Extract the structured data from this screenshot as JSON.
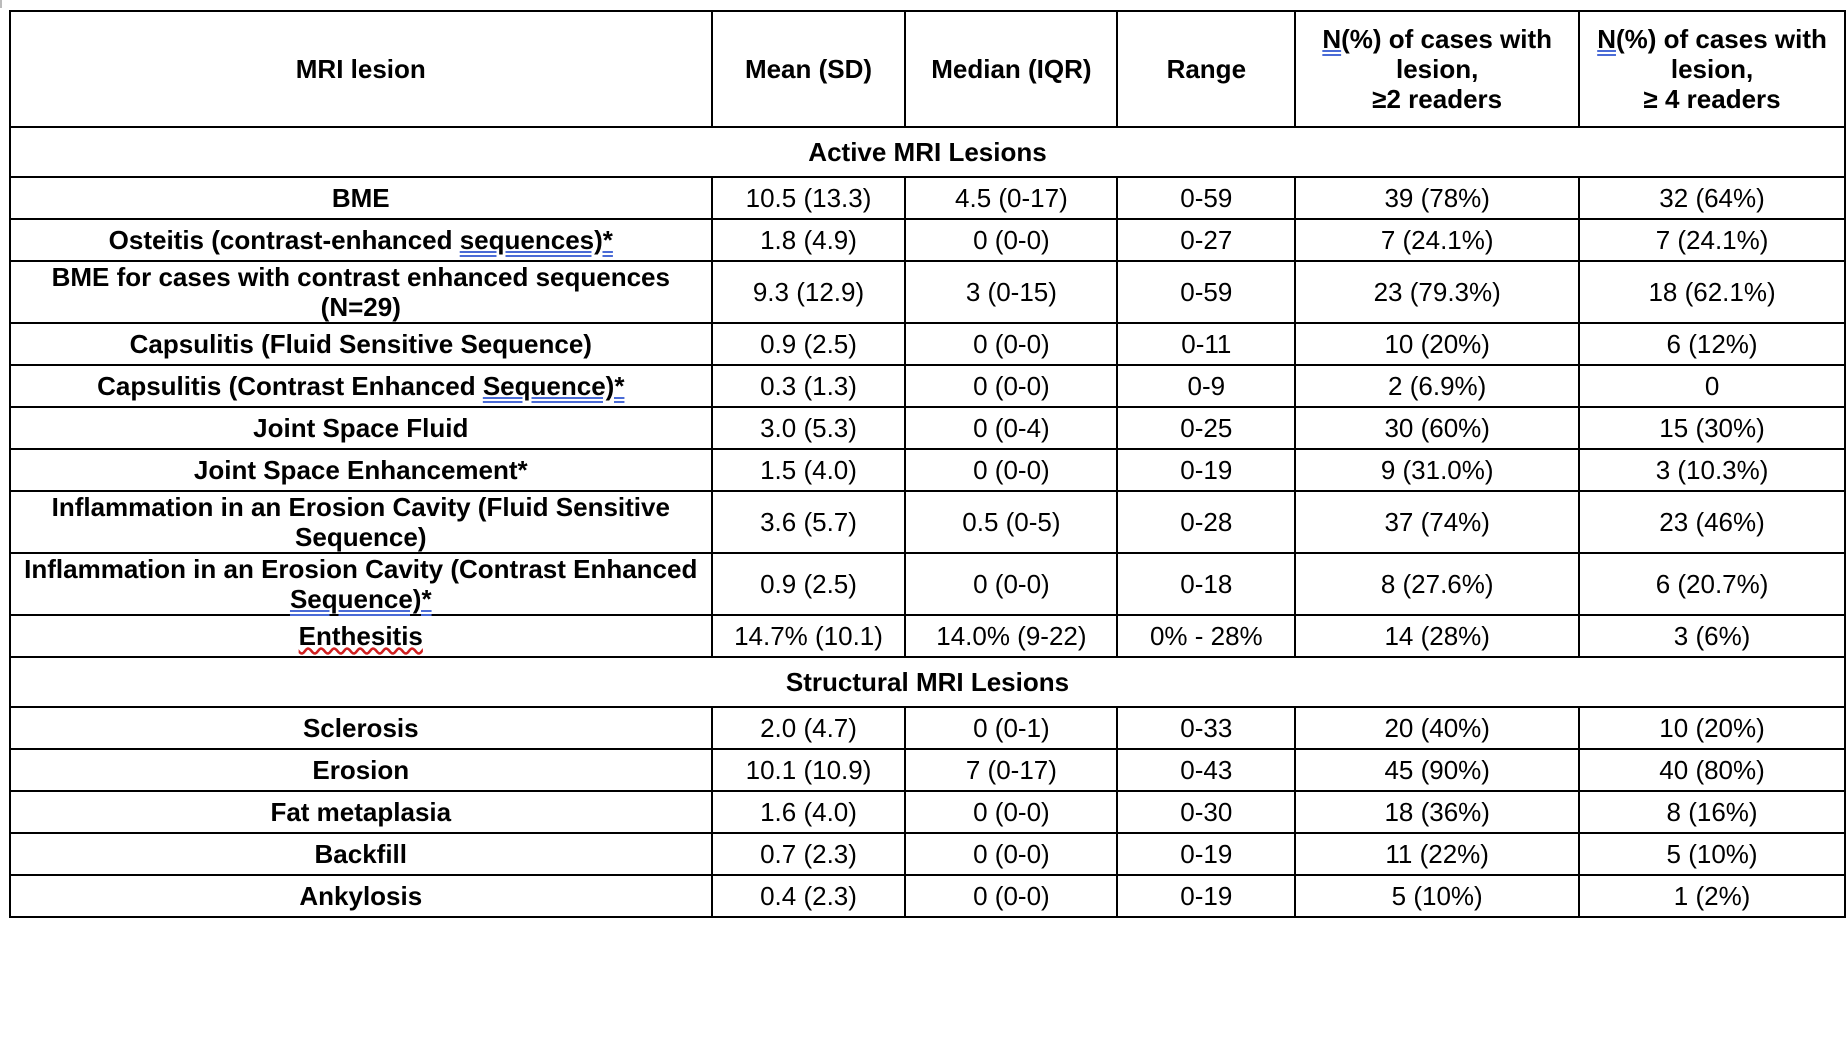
{
  "table": {
    "headers": [
      {
        "text": "MRI lesion"
      },
      {
        "text": "Mean (SD)"
      },
      {
        "text": "Median (IQR)"
      },
      {
        "text": "Range"
      },
      {
        "u": "N",
        "rest": "(%) of cases with lesion,",
        "line3": "≥2 readers"
      },
      {
        "u": "N",
        "rest": "(%) of cases with lesion,",
        "line3": "≥ 4 readers"
      }
    ],
    "sections": [
      {
        "title": "Active MRI Lesions",
        "rows": [
          {
            "label": "BME",
            "mean": "10.5 (13.3)",
            "median": "4.5 (0-17)",
            "range": "0-59",
            "n2": "39 (78%)",
            "n4": "32 (64%)"
          },
          {
            "label_pre": "Osteitis (contrast-enhanced ",
            "label_u": "sequences)*",
            "mean": "1.8 (4.9)",
            "median": "0 (0-0)",
            "range": "0-27",
            "n2": "7 (24.1%)",
            "n4": "7 (24.1%)"
          },
          {
            "label": "BME for cases with contrast enhanced sequences (N=29)",
            "mean": "9.3 (12.9)",
            "median": "3 (0-15)",
            "range": "0-59",
            "n2": "23 (79.3%)",
            "n4": "18 (62.1%)"
          },
          {
            "label": "Capsulitis (Fluid Sensitive Sequence)",
            "mean": "0.9 (2.5)",
            "median": "0 (0-0)",
            "range": "0-11",
            "n2": "10 (20%)",
            "n4": "6 (12%)"
          },
          {
            "label_pre": "Capsulitis (Contrast Enhanced ",
            "label_u": "Sequence)*",
            "mean": "0.3 (1.3)",
            "median": "0 (0-0)",
            "range": "0-9",
            "n2": "2 (6.9%)",
            "n4": "0"
          },
          {
            "label": "Joint Space Fluid",
            "mean": "3.0 (5.3)",
            "median": "0 (0-4)",
            "range": "0-25",
            "n2": "30 (60%)",
            "n4": "15 (30%)"
          },
          {
            "label": "Joint Space Enhancement*",
            "mean": "1.5 (4.0)",
            "median": "0 (0-0)",
            "range": "0-19",
            "n2": "9 (31.0%)",
            "n4": "3 (10.3%)"
          },
          {
            "label": "Inflammation in an Erosion Cavity (Fluid Sensitive Sequence)",
            "mean": "3.6 (5.7)",
            "median": "0.5 (0-5)",
            "range": "0-28",
            "n2": "37 (74%)",
            "n4": "23 (46%)"
          },
          {
            "label_pre": "Inflammation in an Erosion Cavity (Contrast Enhanced ",
            "label_u": "Sequence)*",
            "mean": "0.9 (2.5)",
            "median": "0 (0-0)",
            "range": "0-18",
            "n2": "8 (27.6%)",
            "n4": "6 (20.7%)"
          },
          {
            "label_red": "Enthesitis",
            "mean": "14.7% (10.1)",
            "median": "14.0% (9-22)",
            "range": "0% - 28%",
            "n2": "14 (28%)",
            "n4": "3 (6%)"
          }
        ]
      },
      {
        "title": "Structural MRI Lesions",
        "rows": [
          {
            "label": "Sclerosis",
            "mean": "2.0 (4.7)",
            "median": "0 (0-1)",
            "range": "0-33",
            "n2": "20 (40%)",
            "n4": "10 (20%)"
          },
          {
            "label": "Erosion",
            "mean": "10.1 (10.9)",
            "median": "7 (0-17)",
            "range": "0-43",
            "n2": "45 (90%)",
            "n4": "40 (80%)"
          },
          {
            "label": "Fat metaplasia",
            "mean": "1.6 (4.0)",
            "median": "0 (0-0)",
            "range": "0-30",
            "n2": "18 (36%)",
            "n4": "8 (16%)"
          },
          {
            "label": "Backfill",
            "mean": "0.7 (2.3)",
            "median": "0 (0-0)",
            "range": "0-19",
            "n2": "11 (22%)",
            "n4": "5 (10%)"
          },
          {
            "label": "Ankylosis",
            "mean": "0.4 (2.3)",
            "median": "0 (0-0)",
            "range": "0-19",
            "n2": "5 (10%)",
            "n4": "1 (2%)"
          }
        ]
      }
    ]
  }
}
